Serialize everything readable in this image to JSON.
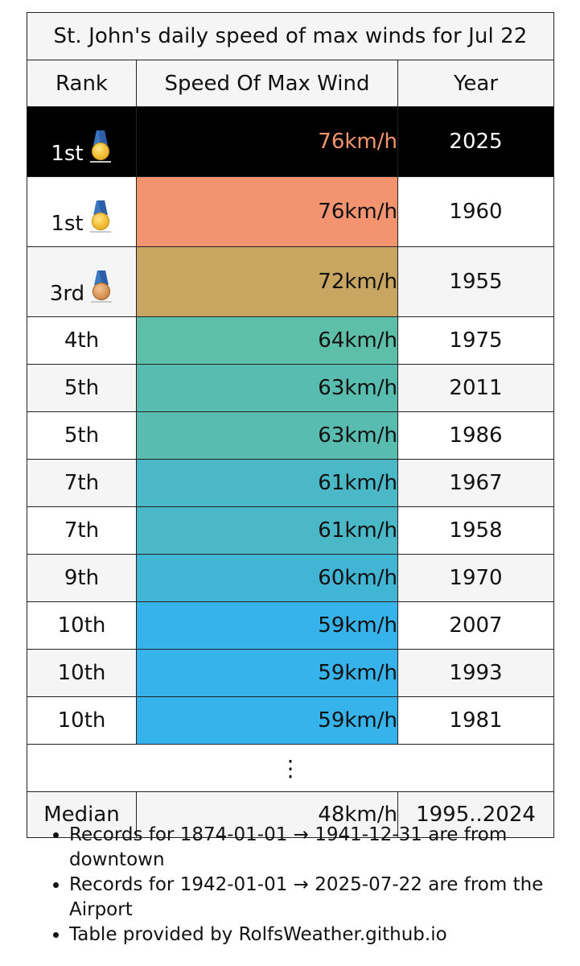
{
  "table": {
    "title": "St. John's daily speed of max winds for Jul 22",
    "headers": {
      "rank": "Rank",
      "speed": "Speed Of Max Wind",
      "year": "Year"
    },
    "rows": [
      {
        "rank": "1st",
        "speed": "76km/h",
        "year": "2025",
        "medal": "gold-medal-icon",
        "speed_color": "#000000",
        "highlight": true
      },
      {
        "rank": "1st",
        "speed": "76km/h",
        "year": "1960",
        "medal": "gold-medal-icon",
        "speed_color": "#f4936f"
      },
      {
        "rank": "3rd",
        "speed": "72km/h",
        "year": "1955",
        "medal": "bronze-medal-icon",
        "speed_color": "#c8a661"
      },
      {
        "rank": "4th",
        "speed": "64km/h",
        "year": "1975",
        "speed_color": "#5ebfa8"
      },
      {
        "rank": "5th",
        "speed": "63km/h",
        "year": "2011",
        "speed_color": "#58bdb0"
      },
      {
        "rank": "5th",
        "speed": "63km/h",
        "year": "1986",
        "speed_color": "#58bdb0"
      },
      {
        "rank": "7th",
        "speed": "61km/h",
        "year": "1967",
        "speed_color": "#4ab8c6"
      },
      {
        "rank": "7th",
        "speed": "61km/h",
        "year": "1958",
        "speed_color": "#4ab8c6"
      },
      {
        "rank": "9th",
        "speed": "60km/h",
        "year": "1970",
        "speed_color": "#41b5d3"
      },
      {
        "rank": "10th",
        "speed": "59km/h",
        "year": "2007",
        "speed_color": "#36b3ea"
      },
      {
        "rank": "10th",
        "speed": "59km/h",
        "year": "1993",
        "speed_color": "#36b3ea"
      },
      {
        "rank": "10th",
        "speed": "59km/h",
        "year": "1981",
        "speed_color": "#36b3ea"
      }
    ],
    "ellipsis": "⋮",
    "median": {
      "label": "Median",
      "speed": "48km/h",
      "years": "1995..2024"
    }
  },
  "notes": [
    "Records for 1874-01-01 → 1941-12-31 are from downtown",
    "Records for 1942-01-01 → 2025-07-22 are from the Airport",
    "Table provided by RolfsWeather.github.io"
  ]
}
